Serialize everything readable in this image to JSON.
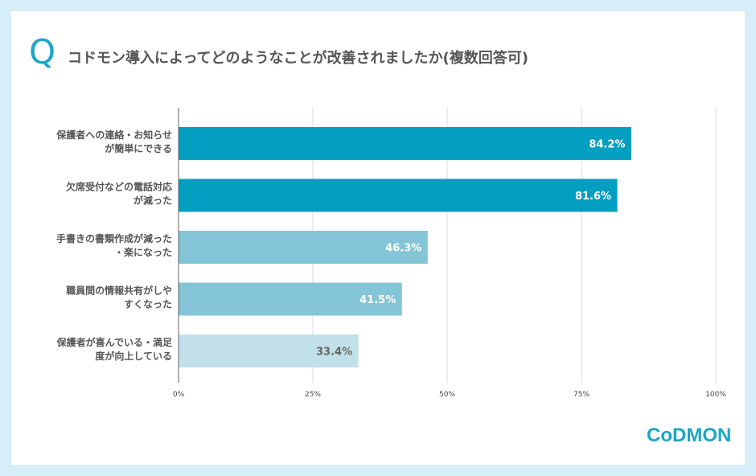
{
  "header": {
    "q_letter": "Q",
    "title": "コドモン導入によってどのようなことが改善されましたか(複数回答可)"
  },
  "chart_data": {
    "type": "bar",
    "orientation": "horizontal",
    "categories": [
      [
        "保護者への連絡・お知らせ",
        "が簡単にできる"
      ],
      [
        "欠席受付などの電話対応",
        "が減った"
      ],
      [
        "手書きの書類作成が減った",
        "・楽になった"
      ],
      [
        "職員間の情報共有がしや",
        "すくなった"
      ],
      [
        "保護者が喜んでいる・満足",
        "度が向上している"
      ]
    ],
    "values": [
      84.2,
      81.6,
      46.3,
      41.5,
      33.4
    ],
    "value_labels": [
      "84.2%",
      "81.6%",
      "46.3%",
      "41.5%",
      "33.4%"
    ],
    "bar_colors": [
      "#039fc1",
      "#039fc1",
      "#83c5d6",
      "#83c5d6",
      "#c1e0e9"
    ],
    "value_label_colors": [
      "#ffffff",
      "#ffffff",
      "#ffffff",
      "#ffffff",
      "#666666"
    ],
    "xlim": [
      0,
      100
    ],
    "x_ticks": [
      "0%",
      "25%",
      "50%",
      "75%",
      "100%"
    ],
    "grid": true
  },
  "logo": {
    "text": "CoDMON"
  }
}
